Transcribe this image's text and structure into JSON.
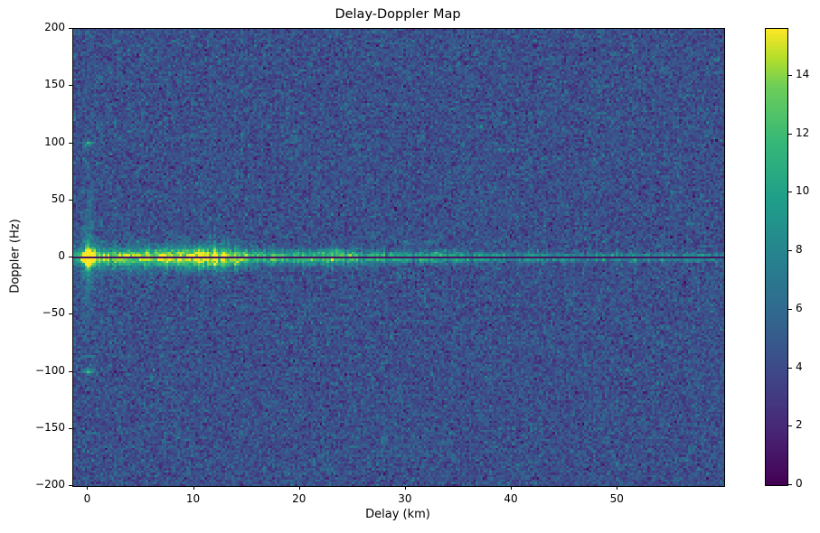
{
  "chart_data": {
    "type": "heatmap",
    "title": "Delay-Doppler Map",
    "xlabel": "Delay (km)",
    "ylabel": "Doppler (Hz)",
    "xlim": [
      -1.4,
      60.05
    ],
    "ylim": [
      -200,
      200
    ],
    "xticks": [
      0,
      10,
      20,
      30,
      40,
      50
    ],
    "yticks": [
      200,
      150,
      100,
      50,
      0,
      -50,
      -100,
      -150,
      -200
    ],
    "grid": false,
    "colorbar": {
      "position": "right",
      "vmin": 0,
      "vmax": 15.6,
      "ticks": [
        0,
        2,
        4,
        6,
        8,
        10,
        12,
        14
      ],
      "colormap": "viridis"
    },
    "colormap_stops": [
      [
        0.0,
        "#440154"
      ],
      [
        0.125,
        "#482878"
      ],
      [
        0.25,
        "#3e4989"
      ],
      [
        0.375,
        "#31688e"
      ],
      [
        0.5,
        "#26828e"
      ],
      [
        0.625,
        "#1f9e89"
      ],
      [
        0.75,
        "#35b779"
      ],
      [
        0.875,
        "#6ece58"
      ],
      [
        0.9375,
        "#b5de2b"
      ],
      [
        1.0,
        "#fde725"
      ]
    ],
    "noise": {
      "seed": 42,
      "nx": 288,
      "ny": 203,
      "mean": 4.35,
      "sd": 1.12
    },
    "features": {
      "zero_doppler_band": {
        "doppler_hz": 0,
        "envelope_points": [
          [
            -1.4,
            9.5
          ],
          [
            -0.4,
            10.5
          ],
          [
            0,
            15.5
          ],
          [
            0.8,
            12.8
          ],
          [
            3,
            12.2
          ],
          [
            6,
            13.0
          ],
          [
            9,
            14.6
          ],
          [
            12,
            15.0
          ],
          [
            14,
            13.6
          ],
          [
            17,
            12.2
          ],
          [
            20,
            11.6
          ],
          [
            23.7,
            12.6
          ],
          [
            26,
            11.2
          ],
          [
            30,
            10.2
          ],
          [
            33,
            10.8
          ],
          [
            35,
            9.6
          ],
          [
            40,
            9.0
          ],
          [
            50,
            8.8
          ],
          [
            60,
            8.6
          ]
        ],
        "doppler_sigma_base_hz": 2.1,
        "pedestal_sigma_hz": 13,
        "pedestal_max_amp": 1.6,
        "pedestal_delay_extent_km": 16
      },
      "specular_point": {
        "delay_km": 0,
        "doppler_hz": 0,
        "amp": 8.0,
        "sigma_delay_km": 0.45,
        "sigma_doppler_hz": 3.5,
        "streak_amp": 5.5,
        "streak_sigma_delay_km": 0.35,
        "streak_doppler_decay_hz": 28
      },
      "ambiguity_spots": [
        {
          "delay_km": 0,
          "doppler_hz": 100,
          "amp": 7.0,
          "sigma_delay_km": 0.35,
          "sigma_doppler_hz": 1.4
        },
        {
          "delay_km": 0,
          "doppler_hz": -100,
          "amp": 7.0,
          "sigma_delay_km": 0.35,
          "sigma_doppler_hz": 1.4
        }
      ],
      "small_dots": [
        {
          "delay_km": 30.0,
          "doppler_hz": 12.5,
          "amp": 3.2
        },
        {
          "delay_km": 32.4,
          "doppler_hz": 13.0,
          "amp": 3.8
        },
        {
          "delay_km": 23.7,
          "doppler_hz": 6.0,
          "amp": 3.0
        }
      ],
      "zero_doppler_dark_line": {
        "doppler_hz": 0,
        "half_width_hz": 1.0,
        "value": 1.0
      }
    }
  }
}
